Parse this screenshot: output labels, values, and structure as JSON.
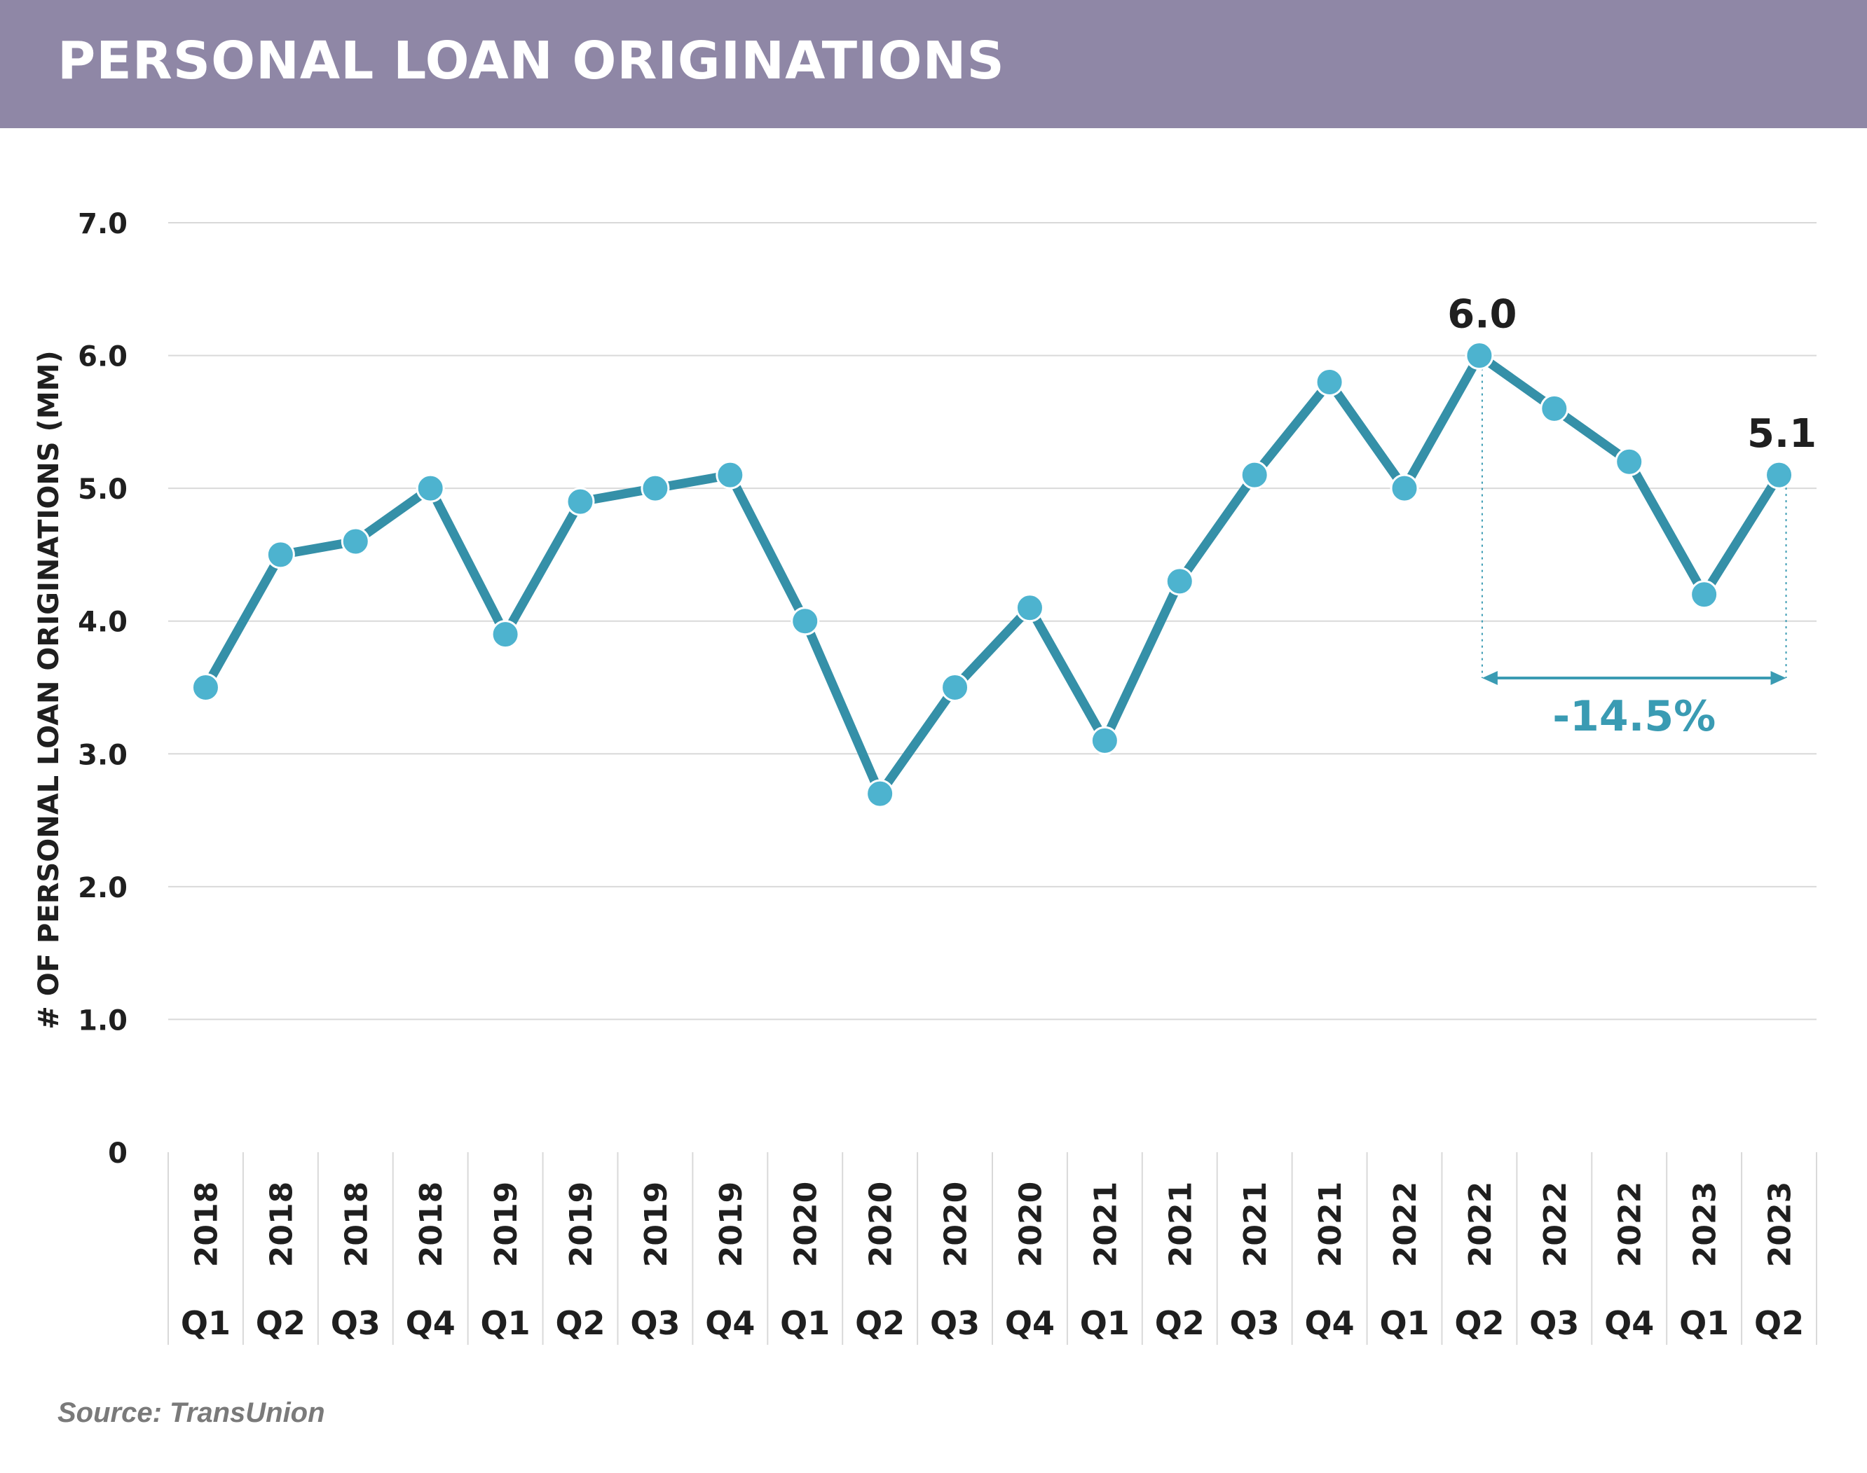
{
  "header": {
    "title": "PERSONAL LOAN ORIGINATIONS"
  },
  "footer": {
    "source": "Source: TransUnion"
  },
  "chart_data": {
    "type": "line",
    "title": "PERSONAL LOAN ORIGINATIONS",
    "ylabel": "# OF PERSONAL LOAN ORIGINATIONS (MM)",
    "xlabel": "",
    "ylim": [
      0,
      7
    ],
    "y_ticks": [
      "0",
      "1.0",
      "2.0",
      "3.0",
      "4.0",
      "5.0",
      "6.0",
      "7.0"
    ],
    "grid": true,
    "categories": [
      {
        "year": "2018",
        "quarter": "Q1"
      },
      {
        "year": "2018",
        "quarter": "Q2"
      },
      {
        "year": "2018",
        "quarter": "Q3"
      },
      {
        "year": "2018",
        "quarter": "Q4"
      },
      {
        "year": "2019",
        "quarter": "Q1"
      },
      {
        "year": "2019",
        "quarter": "Q2"
      },
      {
        "year": "2019",
        "quarter": "Q3"
      },
      {
        "year": "2019",
        "quarter": "Q4"
      },
      {
        "year": "2020",
        "quarter": "Q1"
      },
      {
        "year": "2020",
        "quarter": "Q2"
      },
      {
        "year": "2020",
        "quarter": "Q3"
      },
      {
        "year": "2020",
        "quarter": "Q4"
      },
      {
        "year": "2021",
        "quarter": "Q1"
      },
      {
        "year": "2021",
        "quarter": "Q2"
      },
      {
        "year": "2021",
        "quarter": "Q3"
      },
      {
        "year": "2021",
        "quarter": "Q4"
      },
      {
        "year": "2022",
        "quarter": "Q1"
      },
      {
        "year": "2022",
        "quarter": "Q2"
      },
      {
        "year": "2022",
        "quarter": "Q3"
      },
      {
        "year": "2022",
        "quarter": "Q4"
      },
      {
        "year": "2023",
        "quarter": "Q1"
      },
      {
        "year": "2023",
        "quarter": "Q2"
      }
    ],
    "series": [
      {
        "values": [
          3.5,
          4.5,
          4.6,
          5.0,
          3.9,
          4.9,
          5.0,
          5.1,
          4.0,
          2.7,
          3.5,
          4.1,
          3.1,
          4.3,
          5.1,
          5.8,
          5.0,
          6.0,
          5.6,
          5.2,
          4.2,
          5.1
        ]
      }
    ],
    "data_labels": [
      {
        "index": 17,
        "text": "6.0"
      },
      {
        "index": 21,
        "text": "5.1"
      }
    ],
    "annotation": {
      "from_index": 17,
      "to_index": 21,
      "text": "-14.5%"
    },
    "colors": {
      "line": "#3590a8",
      "marker": "#4db3cf",
      "annotation": "#3a9bb3",
      "grid": "#d9d9d9",
      "axis_text": "#1f1f1f"
    }
  }
}
